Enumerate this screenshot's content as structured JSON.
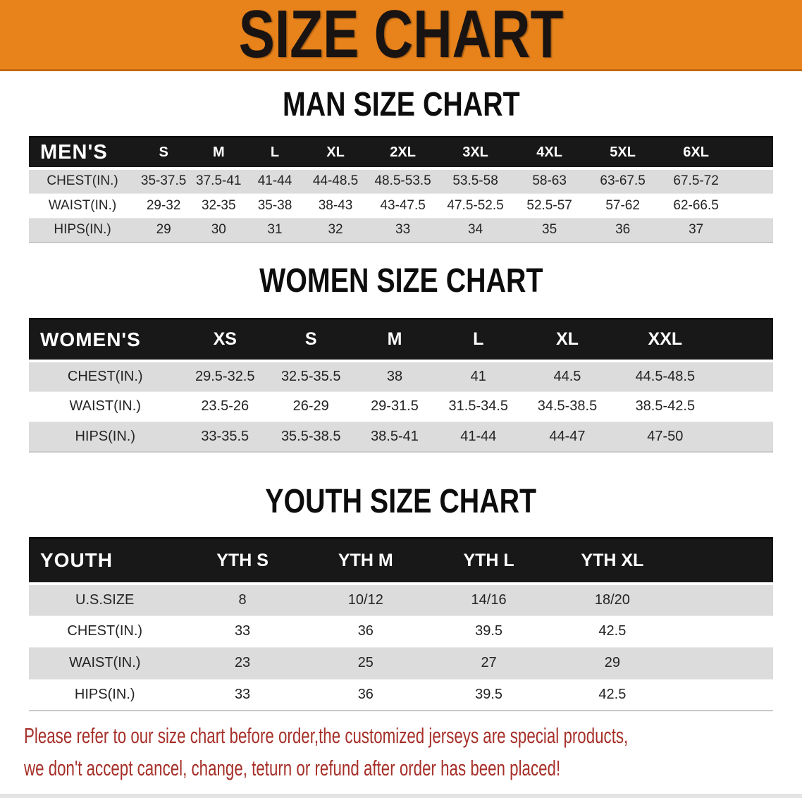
{
  "banner": {
    "title": "SIZE CHART",
    "bg_color": "#E8831C",
    "text_color": "#191412"
  },
  "sections": [
    {
      "title": "MAN SIZE CHART",
      "header_label": "MEN'S",
      "columns": [
        "S",
        "M",
        "L",
        "XL",
        "2XL",
        "3XL",
        "4XL",
        "5XL",
        "6XL"
      ],
      "rows": [
        {
          "label": "CHEST(IN.)",
          "values": [
            "35-37.5",
            "37.5-41",
            "41-44",
            "44-48.5",
            "48.5-53.5",
            "53.5-58",
            "58-63",
            "63-67.5",
            "67.5-72"
          ]
        },
        {
          "label": "WAIST(IN.)",
          "values": [
            "29-32",
            "32-35",
            "35-38",
            "38-43",
            "43-47.5",
            "47.5-52.5",
            "52.5-57",
            "57-62",
            "62-66.5"
          ]
        },
        {
          "label": "HIPS(IN.)",
          "values": [
            "29",
            "30",
            "31",
            "32",
            "33",
            "34",
            "35",
            "36",
            "37"
          ]
        }
      ]
    },
    {
      "title": "WOMEN SIZE CHART",
      "header_label": "WOMEN'S",
      "columns": [
        "XS",
        "S",
        "M",
        "L",
        "XL",
        "XXL"
      ],
      "rows": [
        {
          "label": "CHEST(IN.)",
          "values": [
            "29.5-32.5",
            "32.5-35.5",
            "38",
            "41",
            "44.5",
            "44.5-48.5"
          ]
        },
        {
          "label": "WAIST(IN.)",
          "values": [
            "23.5-26",
            "26-29",
            "29-31.5",
            "31.5-34.5",
            "34.5-38.5",
            "38.5-42.5"
          ]
        },
        {
          "label": "HIPS(IN.)",
          "values": [
            "33-35.5",
            "35.5-38.5",
            "38.5-41",
            "41-44",
            "44-47",
            "47-50"
          ]
        }
      ]
    },
    {
      "title": "YOUTH SIZE CHART",
      "header_label": "YOUTH",
      "columns": [
        "YTH S",
        "YTH M",
        "YTH L",
        "YTH XL"
      ],
      "rows": [
        {
          "label": "U.S.SIZE",
          "values": [
            "8",
            "10/12",
            "14/16",
            "18/20"
          ]
        },
        {
          "label": "CHEST(IN.)",
          "values": [
            "33",
            "36",
            "39.5",
            "42.5"
          ]
        },
        {
          "label": "WAIST(IN.)",
          "values": [
            "23",
            "25",
            "27",
            "29"
          ]
        },
        {
          "label": "HIPS(IN.)",
          "values": [
            "33",
            "36",
            "39.5",
            "42.5"
          ]
        }
      ]
    }
  ],
  "disclaimer": {
    "color": "#A63029",
    "lines": [
      "Please refer to our size chart before order,the customized jerseys are special products,",
      "we don't accept cancel, change, teturn or refund after order has been placed!"
    ]
  }
}
